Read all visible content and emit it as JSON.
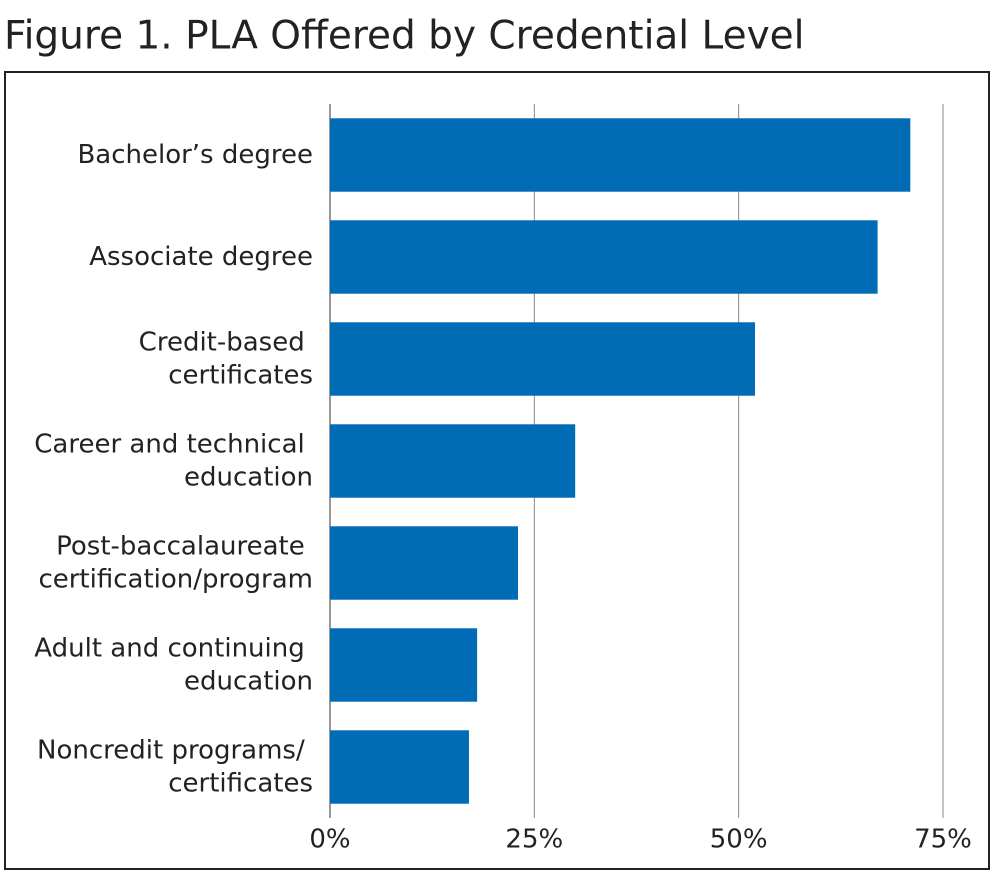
{
  "chart_data": {
    "type": "bar",
    "orientation": "horizontal",
    "title": "Figure 1. PLA Offered by Credential Level",
    "categories": [
      "Bachelor’s degree",
      "Associate degree",
      "Credit-based certificates",
      "Career and technical education",
      "Post-baccalaureate certification/program",
      "Adult and continuing education",
      "Noncredit programs/ certificates"
    ],
    "values": [
      71,
      67,
      52,
      30,
      23,
      18,
      17
    ],
    "color": "#006cb5",
    "xlim": [
      0,
      75
    ],
    "xticks": [
      {
        "value": 0,
        "label": "0%"
      },
      {
        "value": 25,
        "label": "25%"
      },
      {
        "value": 50,
        "label": "50%"
      },
      {
        "value": 75,
        "label": "75%"
      }
    ],
    "grid": true
  }
}
